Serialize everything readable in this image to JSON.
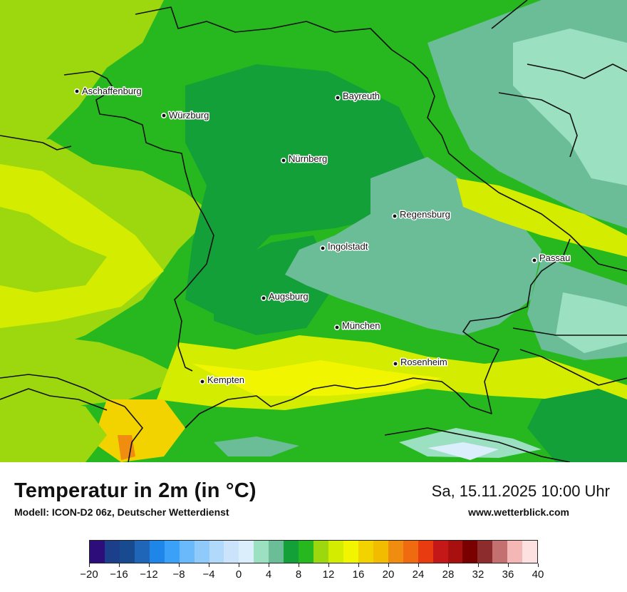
{
  "map": {
    "region": "Bavaria",
    "cities": [
      {
        "name": "Aschaffenburg"
      },
      {
        "name": "Würzburg"
      },
      {
        "name": "Bayreuth"
      },
      {
        "name": "Nürnberg"
      },
      {
        "name": "Regensburg"
      },
      {
        "name": "Ingolstadt"
      },
      {
        "name": "Passau"
      },
      {
        "name": "Augsburg"
      },
      {
        "name": "München"
      },
      {
        "name": "Rosenheim"
      },
      {
        "name": "Kempten"
      }
    ]
  },
  "footer": {
    "title": "Temperatur in 2m (in °C)",
    "model": "Modell: ICON-D2 06z, Deutscher Wetterdienst",
    "datetime": "Sa, 15.11.2025 10:00 Uhr",
    "website": "www.wetterblick.com"
  },
  "legend": {
    "min": -20,
    "max": 40,
    "step": 2,
    "tick_labels": [
      "−20",
      "−16",
      "−12",
      "−8",
      "−4",
      "0",
      "4",
      "8",
      "12",
      "16",
      "20",
      "24",
      "28",
      "32",
      "36",
      "40"
    ],
    "colors": [
      "#2d0d7a",
      "#1c3f8c",
      "#184a8f",
      "#1f66b8",
      "#1e86e8",
      "#3aa0f8",
      "#6ab9fb",
      "#8fcafb",
      "#b0d9fb",
      "#cbe4fb",
      "#daeefb",
      "#9be0c1",
      "#6bbd97",
      "#14a038",
      "#27b820",
      "#9cd80d",
      "#d4ec00",
      "#f2f500",
      "#f2d300",
      "#f2bc00",
      "#f08c10",
      "#f06a10",
      "#e83c10",
      "#c41818",
      "#a81010",
      "#7a0000",
      "#8c2c2c",
      "#c47070",
      "#f5b6b6",
      "#fde0e0"
    ]
  }
}
